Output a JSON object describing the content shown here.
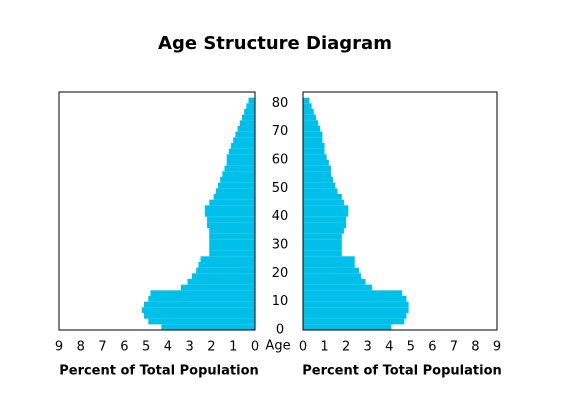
{
  "chart_data": {
    "type": "pyramid",
    "title": "Age Structure Diagram",
    "ylabel": "Age",
    "ylim": [
      0,
      84
    ],
    "yticks": [
      0,
      10,
      20,
      30,
      40,
      50,
      60,
      70,
      80
    ],
    "bins": [
      0,
      2,
      4,
      6,
      8,
      10,
      12,
      14,
      16,
      18,
      20,
      22,
      24,
      26,
      28,
      30,
      32,
      34,
      36,
      38,
      40,
      42,
      44,
      46,
      48,
      50,
      52,
      54,
      56,
      58,
      60,
      62,
      64,
      66,
      68,
      70,
      72,
      74,
      76,
      78,
      80,
      82
    ],
    "panels": [
      {
        "xlabel": "Percent of Total Population",
        "xlim": [
          9,
          0
        ],
        "xticks": [
          9,
          8,
          7,
          6,
          5,
          4,
          3,
          2,
          1,
          0
        ],
        "color": "#00bfe8",
        "values": [
          4.3,
          4.9,
          5.1,
          5.2,
          5.1,
          4.9,
          4.8,
          3.4,
          3.1,
          2.9,
          2.7,
          2.6,
          2.5,
          2.1,
          2.1,
          2.1,
          2.1,
          2.1,
          2.2,
          2.2,
          2.3,
          2.3,
          2.1,
          1.9,
          1.8,
          1.7,
          1.6,
          1.5,
          1.4,
          1.3,
          1.3,
          1.2,
          1.1,
          1.0,
          0.9,
          0.8,
          0.7,
          0.6,
          0.5,
          0.4,
          0.3
        ]
      },
      {
        "xlabel": "Percent of Total Population",
        "xlim": [
          0,
          9
        ],
        "xticks": [
          0,
          1,
          2,
          3,
          4,
          5,
          6,
          7,
          8,
          9
        ],
        "color": "#00bfe8",
        "values": [
          4.1,
          4.7,
          4.8,
          4.9,
          4.9,
          4.8,
          4.6,
          3.2,
          2.9,
          2.7,
          2.6,
          2.4,
          2.4,
          1.8,
          1.8,
          1.8,
          1.8,
          1.9,
          2.0,
          2.0,
          2.1,
          2.1,
          1.9,
          1.8,
          1.6,
          1.5,
          1.4,
          1.3,
          1.3,
          1.2,
          1.1,
          1.0,
          1.0,
          0.9,
          0.9,
          0.8,
          0.7,
          0.6,
          0.5,
          0.4,
          0.3
        ]
      }
    ]
  }
}
